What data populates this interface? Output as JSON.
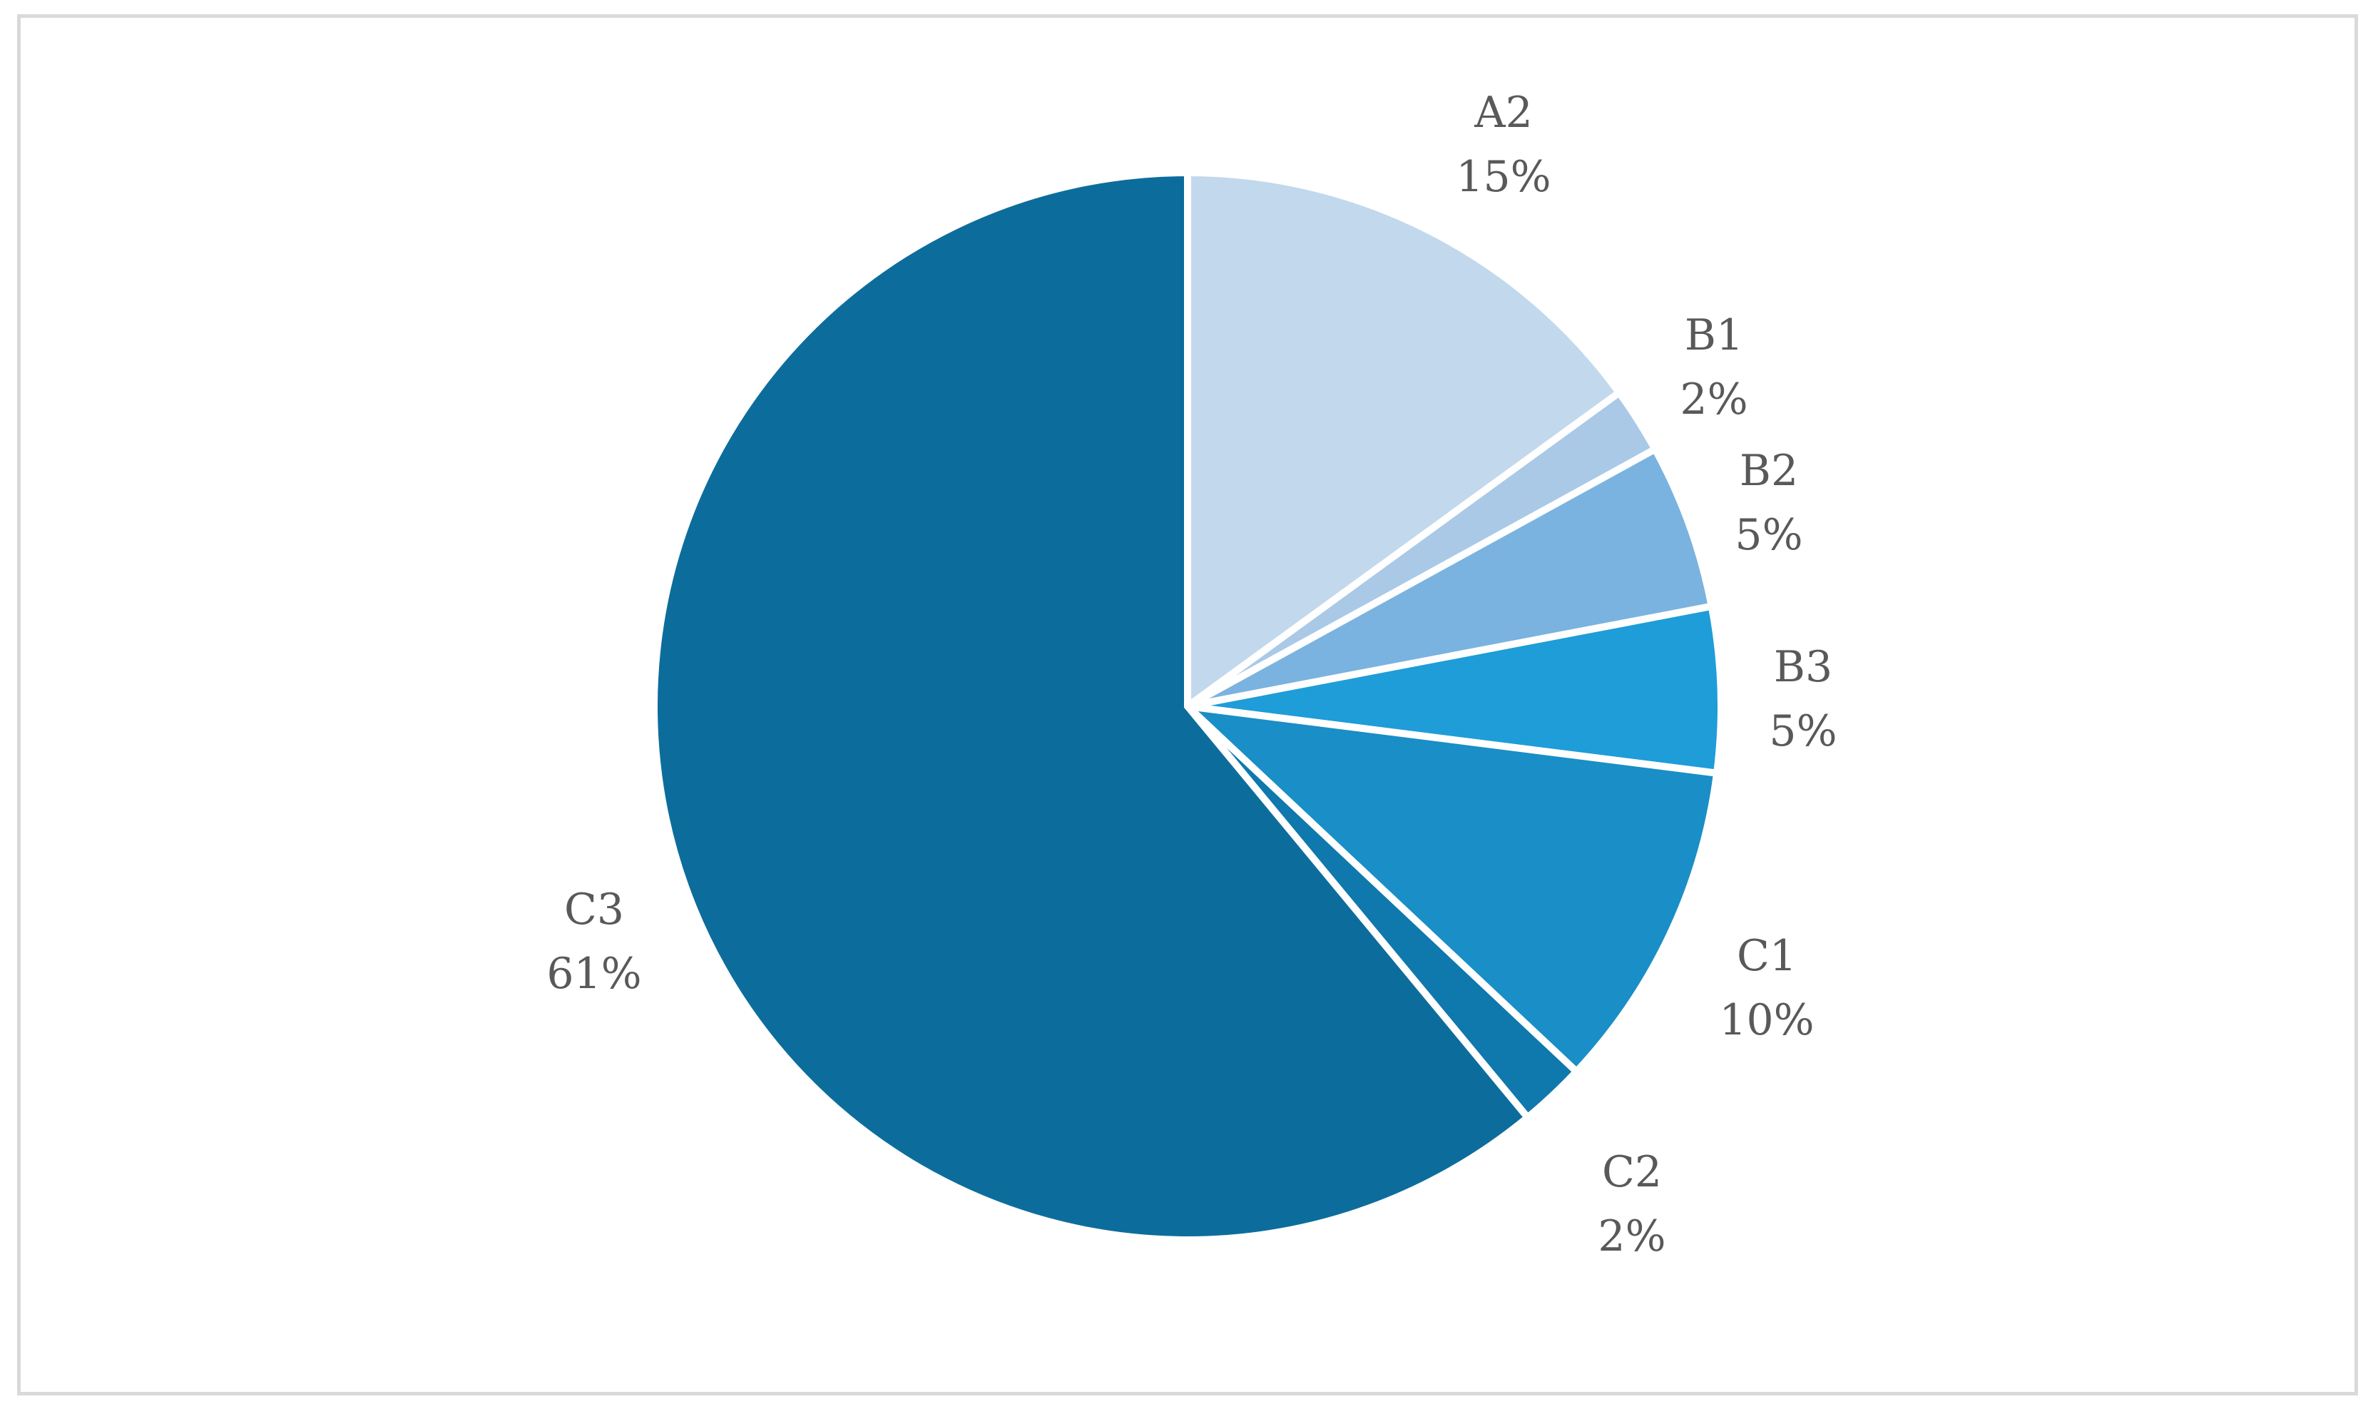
{
  "chart_data": {
    "type": "pie",
    "categories": [
      "A2",
      "B1",
      "B2",
      "B3",
      "C1",
      "C2",
      "C3"
    ],
    "values": [
      15,
      2,
      5,
      5,
      10,
      2,
      61
    ],
    "data_labels": [
      "15%",
      "2%",
      "5%",
      "5%",
      "10%",
      "2%",
      "61%"
    ],
    "colors": [
      "#c2d8ec",
      "#a9c9e7",
      "#7ab3df",
      "#1e9dd8",
      "#1a8ec6",
      "#0f78ad",
      "#0c6d9c"
    ],
    "start_angle": "12 o'clock",
    "direction": "clockwise",
    "legend": "none",
    "slice_separator_color": "#ffffff"
  }
}
